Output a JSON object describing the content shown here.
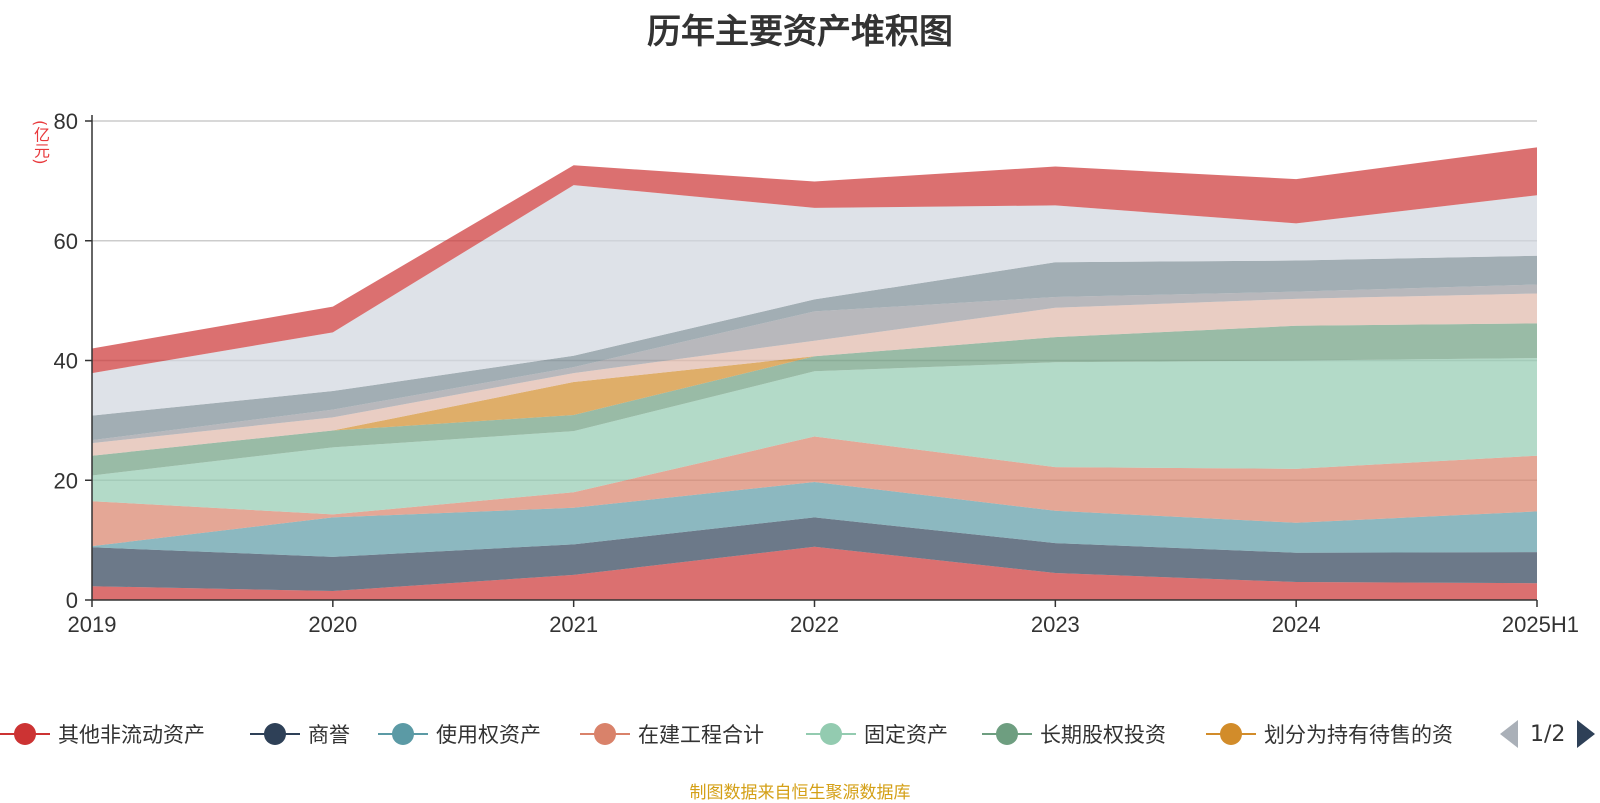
{
  "title": "历年主要资产堆积图",
  "y_unit": "(亿元)",
  "source_note": "制图数据来自恒生聚源数据库",
  "legend_pager": {
    "text": "1/2"
  },
  "legend": [
    {
      "label": "其他非流动资产",
      "color": "#cc3333"
    },
    {
      "label": "商誉",
      "color": "#2e4057"
    },
    {
      "label": "使用权资产",
      "color": "#5b9aa5"
    },
    {
      "label": "在建工程合计",
      "color": "#d9826a"
    },
    {
      "label": "固定资产",
      "color": "#93cbb0"
    },
    {
      "label": "长期股权投资",
      "color": "#6e9e80"
    },
    {
      "label": "划分为持有待售的资",
      "color": "#d28c2a"
    }
  ],
  "chart_data": {
    "type": "area",
    "stacked": true,
    "title": "历年主要资产堆积图",
    "ylabel": "(亿元)",
    "ylim": [
      0,
      80
    ],
    "yticks": [
      0,
      20,
      40,
      60,
      80
    ],
    "grid": true,
    "legend_position": "bottom",
    "categories": [
      "2019",
      "2020",
      "2021",
      "2022",
      "2023",
      "2024",
      "2025H1"
    ],
    "series": [
      {
        "name": "其他非流动资产",
        "color": "#cc3333",
        "values": [
          2.3,
          1.5,
          4.2,
          8.9,
          4.5,
          3.0,
          2.8
        ]
      },
      {
        "name": "商誉",
        "color": "#2e4057",
        "values": [
          6.5,
          5.7,
          5.1,
          4.9,
          5.0,
          4.9,
          5.2
        ]
      },
      {
        "name": "使用权资产",
        "color": "#5b9aa5",
        "values": [
          0.2,
          6.6,
          6.1,
          5.9,
          5.4,
          5.0,
          6.8
        ]
      },
      {
        "name": "在建工程合计",
        "color": "#d9826a",
        "values": [
          7.5,
          0.5,
          2.6,
          7.6,
          7.3,
          9.0,
          9.3
        ]
      },
      {
        "name": "固定资产",
        "color": "#93cbb0",
        "values": [
          4.3,
          11.2,
          10.2,
          10.9,
          17.5,
          18.1,
          16.3
        ]
      },
      {
        "name": "长期股权投资",
        "color": "#6e9e80",
        "values": [
          3.3,
          2.8,
          2.7,
          2.5,
          4.2,
          5.8,
          5.8
        ]
      },
      {
        "name": "划分为持有待售的资",
        "color": "#d28c2a",
        "values": [
          0,
          0,
          5.5,
          0,
          0,
          0,
          0
        ]
      },
      {
        "color": "#e0b8aa",
        "values": [
          2.1,
          2.2,
          1.5,
          2.6,
          4.9,
          4.5,
          5.0
        ]
      },
      {
        "color": "#9a9aa0",
        "values": [
          0.5,
          1.3,
          1.0,
          4.9,
          1.8,
          1.2,
          1.5
        ]
      },
      {
        "color": "#7a8b94",
        "values": [
          4.1,
          3.1,
          1.9,
          2.0,
          5.8,
          5.2,
          4.8
        ]
      },
      {
        "color": "#d0d6de",
        "values": [
          7.1,
          9.8,
          28.5,
          15.3,
          9.5,
          6.2,
          10.1
        ]
      },
      {
        "color": "#cc3333",
        "values": [
          4.1,
          4.3,
          3.3,
          4.4,
          6.5,
          7.4,
          8.0
        ]
      }
    ]
  }
}
